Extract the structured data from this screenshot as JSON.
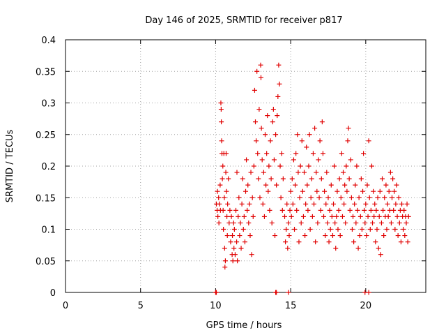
{
  "chart_data": {
    "type": "scatter",
    "title": "Day 146 of 2025, SRMTID for receiver p817",
    "xlabel": "GPS time / hours",
    "ylabel": "SRMTID / TECUs",
    "xlim": [
      0,
      24
    ],
    "ylim": [
      0,
      0.4
    ],
    "xticks": [
      0,
      5,
      10,
      15,
      20
    ],
    "yticks": [
      0,
      0.05,
      0.1,
      0.15,
      0.2,
      0.25,
      0.3,
      0.35,
      0.4
    ],
    "xtick_labels": [
      "0",
      "5",
      "10",
      "15",
      "20"
    ],
    "ytick_labels": [
      "0",
      "0.05",
      "0.1",
      "0.15",
      "0.2",
      "0.25",
      "0.3",
      "0.35",
      "0.4"
    ],
    "grid": true,
    "marker": "+",
    "color": "#e00000",
    "series": [
      {
        "name": "SRMTID",
        "points": [
          [
            10.0,
            0.0
          ],
          [
            10.05,
            0.0
          ],
          [
            14.0,
            0.0
          ],
          [
            14.05,
            0.0
          ],
          [
            14.85,
            0.0
          ],
          [
            19.95,
            0.0
          ],
          [
            20.2,
            0.0
          ],
          [
            10.05,
            0.14
          ],
          [
            10.1,
            0.13
          ],
          [
            10.12,
            0.16
          ],
          [
            10.15,
            0.12
          ],
          [
            10.2,
            0.15
          ],
          [
            10.22,
            0.11
          ],
          [
            10.25,
            0.14
          ],
          [
            10.3,
            0.17
          ],
          [
            10.32,
            0.13
          ],
          [
            10.35,
            0.3
          ],
          [
            10.37,
            0.29
          ],
          [
            10.38,
            0.27
          ],
          [
            10.4,
            0.24
          ],
          [
            10.42,
            0.22
          ],
          [
            10.45,
            0.18
          ],
          [
            10.48,
            0.2
          ],
          [
            10.5,
            0.13
          ],
          [
            10.52,
            0.1
          ],
          [
            10.55,
            0.22
          ],
          [
            10.58,
            0.15
          ],
          [
            10.6,
            0.07
          ],
          [
            10.62,
            0.04
          ],
          [
            10.65,
            0.05
          ],
          [
            10.68,
            0.19
          ],
          [
            10.7,
            0.22
          ],
          [
            10.72,
            0.16
          ],
          [
            10.75,
            0.12
          ],
          [
            10.78,
            0.09
          ],
          [
            10.8,
            0.14
          ],
          [
            10.85,
            0.18
          ],
          [
            10.9,
            0.11
          ],
          [
            10.95,
            0.13
          ],
          [
            11.0,
            0.08
          ],
          [
            11.05,
            0.12
          ],
          [
            11.1,
            0.06
          ],
          [
            11.12,
            0.09
          ],
          [
            11.15,
            0.05
          ],
          [
            11.2,
            0.11
          ],
          [
            11.22,
            0.07
          ],
          [
            11.25,
            0.1
          ],
          [
            11.3,
            0.06
          ],
          [
            11.35,
            0.13
          ],
          [
            11.4,
            0.08
          ],
          [
            11.42,
            0.19
          ],
          [
            11.45,
            0.05
          ],
          [
            11.5,
            0.12
          ],
          [
            11.55,
            0.15
          ],
          [
            11.6,
            0.09
          ],
          [
            11.65,
            0.11
          ],
          [
            11.7,
            0.07
          ],
          [
            11.75,
            0.14
          ],
          [
            11.8,
            0.18
          ],
          [
            11.85,
            0.1
          ],
          [
            11.9,
            0.12
          ],
          [
            11.95,
            0.08
          ],
          [
            12.0,
            0.16
          ],
          [
            12.05,
            0.21
          ],
          [
            12.1,
            0.13
          ],
          [
            12.15,
            0.17
          ],
          [
            12.2,
            0.11
          ],
          [
            12.25,
            0.14
          ],
          [
            12.3,
            0.09
          ],
          [
            12.35,
            0.19
          ],
          [
            12.4,
            0.06
          ],
          [
            12.45,
            0.15
          ],
          [
            12.5,
            0.12
          ],
          [
            12.55,
            0.2
          ],
          [
            12.6,
            0.32
          ],
          [
            12.65,
            0.27
          ],
          [
            12.7,
            0.24
          ],
          [
            12.75,
            0.35
          ],
          [
            12.8,
            0.22
          ],
          [
            12.85,
            0.18
          ],
          [
            12.9,
            0.29
          ],
          [
            12.95,
            0.15
          ],
          [
            13.0,
            0.36
          ],
          [
            13.02,
            0.34
          ],
          [
            13.05,
            0.26
          ],
          [
            13.1,
            0.21
          ],
          [
            13.15,
            0.14
          ],
          [
            13.2,
            0.19
          ],
          [
            13.25,
            0.12
          ],
          [
            13.3,
            0.25
          ],
          [
            13.35,
            0.17
          ],
          [
            13.4,
            0.22
          ],
          [
            13.45,
            0.28
          ],
          [
            13.5,
            0.16
          ],
          [
            13.55,
            0.2
          ],
          [
            13.6,
            0.13
          ],
          [
            13.65,
            0.24
          ],
          [
            13.7,
            0.18
          ],
          [
            13.75,
            0.11
          ],
          [
            13.8,
            0.27
          ],
          [
            13.85,
            0.29
          ],
          [
            13.9,
            0.21
          ],
          [
            13.95,
            0.09
          ],
          [
            14.0,
            0.25
          ],
          [
            14.05,
            0.17
          ],
          [
            14.1,
            0.28
          ],
          [
            14.15,
            0.31
          ],
          [
            14.2,
            0.36
          ],
          [
            14.25,
            0.33
          ],
          [
            14.3,
            0.2
          ],
          [
            14.35,
            0.15
          ],
          [
            14.4,
            0.22
          ],
          [
            14.45,
            0.13
          ],
          [
            14.5,
            0.18
          ],
          [
            14.6,
            0.12
          ],
          [
            14.65,
            0.08
          ],
          [
            14.7,
            0.1
          ],
          [
            14.75,
            0.14
          ],
          [
            14.8,
            0.07
          ],
          [
            14.85,
            0.11
          ],
          [
            14.9,
            0.09
          ],
          [
            14.95,
            0.13
          ],
          [
            15.0,
            0.16
          ],
          [
            15.05,
            0.12
          ],
          [
            15.1,
            0.18
          ],
          [
            15.15,
            0.14
          ],
          [
            15.2,
            0.21
          ],
          [
            15.25,
            0.1
          ],
          [
            15.3,
            0.17
          ],
          [
            15.35,
            0.22
          ],
          [
            15.4,
            0.13
          ],
          [
            15.45,
            0.25
          ],
          [
            15.5,
            0.19
          ],
          [
            15.55,
            0.08
          ],
          [
            15.6,
            0.15
          ],
          [
            15.65,
            0.2
          ],
          [
            15.7,
            0.11
          ],
          [
            15.75,
            0.24
          ],
          [
            15.8,
            0.16
          ],
          [
            15.85,
            0.12
          ],
          [
            15.9,
            0.19
          ],
          [
            15.95,
            0.09
          ],
          [
            16.0,
            0.14
          ],
          [
            16.05,
            0.23
          ],
          [
            16.1,
            0.17
          ],
          [
            16.15,
            0.13
          ],
          [
            16.2,
            0.2
          ],
          [
            16.25,
            0.25
          ],
          [
            16.3,
            0.1
          ],
          [
            16.35,
            0.15
          ],
          [
            16.4,
            0.18
          ],
          [
            16.45,
            0.12
          ],
          [
            16.5,
            0.22
          ],
          [
            16.55,
            0.14
          ],
          [
            16.6,
            0.26
          ],
          [
            16.65,
            0.08
          ],
          [
            16.7,
            0.19
          ],
          [
            16.75,
            0.16
          ],
          [
            16.8,
            0.11
          ],
          [
            16.85,
            0.21
          ],
          [
            16.9,
            0.15
          ],
          [
            16.95,
            0.24
          ],
          [
            17.0,
            0.13
          ],
          [
            17.05,
            0.18
          ],
          [
            17.1,
            0.27
          ],
          [
            17.15,
            0.22
          ],
          [
            17.2,
            0.12
          ],
          [
            17.25,
            0.16
          ],
          [
            17.3,
            0.09
          ],
          [
            17.35,
            0.14
          ],
          [
            17.4,
            0.19
          ],
          [
            17.45,
            0.11
          ],
          [
            17.5,
            0.15
          ],
          [
            17.55,
            0.08
          ],
          [
            17.6,
            0.13
          ],
          [
            17.65,
            0.1
          ],
          [
            17.7,
            0.17
          ],
          [
            17.75,
            0.12
          ],
          [
            17.8,
            0.09
          ],
          [
            17.85,
            0.14
          ],
          [
            17.9,
            0.2
          ],
          [
            17.95,
            0.11
          ],
          [
            18.0,
            0.07
          ],
          [
            18.05,
            0.12
          ],
          [
            18.1,
            0.16
          ],
          [
            18.15,
            0.1
          ],
          [
            18.2,
            0.13
          ],
          [
            18.25,
            0.18
          ],
          [
            18.3,
            0.09
          ],
          [
            18.35,
            0.15
          ],
          [
            18.4,
            0.22
          ],
          [
            18.45,
            0.12
          ],
          [
            18.5,
            0.19
          ],
          [
            18.55,
            0.14
          ],
          [
            18.6,
            0.17
          ],
          [
            18.65,
            0.11
          ],
          [
            18.7,
            0.2
          ],
          [
            18.75,
            0.16
          ],
          [
            18.8,
            0.24
          ],
          [
            18.85,
            0.26
          ],
          [
            18.9,
            0.18
          ],
          [
            18.95,
            0.13
          ],
          [
            19.0,
            0.21
          ],
          [
            19.05,
            0.15
          ],
          [
            19.1,
            0.1
          ],
          [
            19.15,
            0.12
          ],
          [
            19.2,
            0.08
          ],
          [
            19.25,
            0.14
          ],
          [
            19.3,
            0.17
          ],
          [
            19.35,
            0.11
          ],
          [
            19.4,
            0.2
          ],
          [
            19.45,
            0.13
          ],
          [
            19.5,
            0.07
          ],
          [
            19.55,
            0.15
          ],
          [
            19.6,
            0.09
          ],
          [
            19.65,
            0.12
          ],
          [
            19.7,
            0.18
          ],
          [
            19.75,
            0.1
          ],
          [
            19.8,
            0.16
          ],
          [
            19.85,
            0.22
          ],
          [
            19.9,
            0.13
          ],
          [
            19.95,
            0.11
          ],
          [
            20.0,
            0.14
          ],
          [
            20.05,
            0.09
          ],
          [
            20.1,
            0.17
          ],
          [
            20.15,
            0.12
          ],
          [
            20.2,
            0.24
          ],
          [
            20.25,
            0.15
          ],
          [
            20.3,
            0.1
          ],
          [
            20.35,
            0.13
          ],
          [
            20.4,
            0.2
          ],
          [
            20.45,
            0.11
          ],
          [
            20.5,
            0.16
          ],
          [
            20.55,
            0.12
          ],
          [
            20.6,
            0.14
          ],
          [
            20.65,
            0.08
          ],
          [
            20.7,
            0.13
          ],
          [
            20.75,
            0.1
          ],
          [
            20.8,
            0.15
          ],
          [
            20.85,
            0.07
          ],
          [
            20.9,
            0.12
          ],
          [
            20.95,
            0.16
          ],
          [
            21.0,
            0.06
          ],
          [
            21.05,
            0.11
          ],
          [
            21.1,
            0.18
          ],
          [
            21.15,
            0.13
          ],
          [
            21.2,
            0.09
          ],
          [
            21.25,
            0.15
          ],
          [
            21.3,
            0.12
          ],
          [
            21.35,
            0.17
          ],
          [
            21.4,
            0.1
          ],
          [
            21.45,
            0.14
          ],
          [
            21.5,
            0.12
          ],
          [
            21.55,
            0.16
          ],
          [
            21.6,
            0.13
          ],
          [
            21.65,
            0.19
          ],
          [
            21.7,
            0.11
          ],
          [
            21.75,
            0.15
          ],
          [
            21.8,
            0.18
          ],
          [
            21.85,
            0.13
          ],
          [
            21.9,
            0.16
          ],
          [
            21.95,
            0.1
          ],
          [
            22.0,
            0.14
          ],
          [
            22.05,
            0.17
          ],
          [
            22.1,
            0.12
          ],
          [
            22.15,
            0.09
          ],
          [
            22.2,
            0.15
          ],
          [
            22.25,
            0.11
          ],
          [
            22.3,
            0.13
          ],
          [
            22.35,
            0.08
          ],
          [
            22.4,
            0.14
          ],
          [
            22.45,
            0.12
          ],
          [
            22.5,
            0.1
          ],
          [
            22.55,
            0.13
          ],
          [
            22.6,
            0.09
          ],
          [
            22.65,
            0.12
          ],
          [
            22.7,
            0.11
          ],
          [
            22.75,
            0.14
          ],
          [
            22.8,
            0.08
          ],
          [
            22.85,
            0.12
          ]
        ]
      }
    ]
  }
}
